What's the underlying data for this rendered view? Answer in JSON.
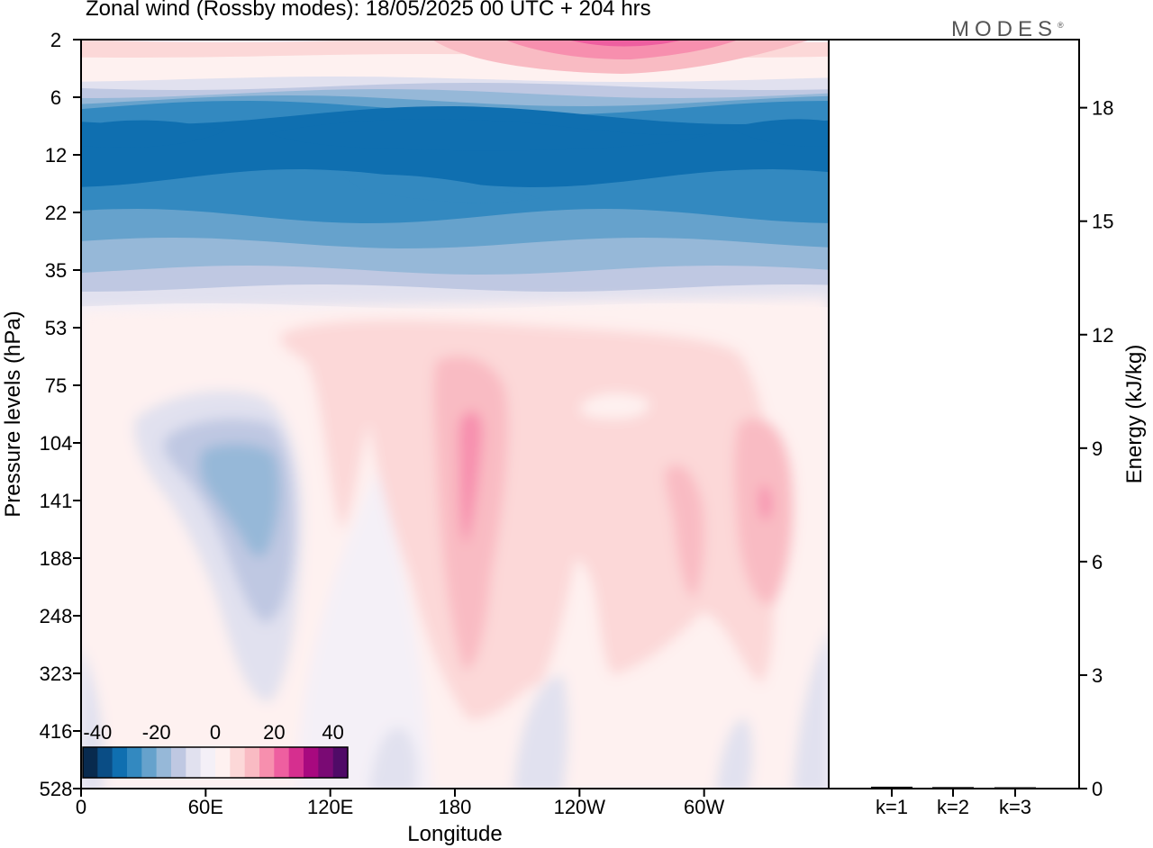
{
  "header": {
    "title": "Zonal wind (Rossby modes):  18/05/2025  00 UTC  + 204 hrs",
    "logo": "MODES",
    "logo_mark": "®"
  },
  "chart_data": [
    {
      "type": "heatmap",
      "title": "Zonal wind (Rossby modes):  18/05/2025  00 UTC  + 204 hrs",
      "xlabel": "Longitude",
      "ylabel": "Pressure levels (hPa)",
      "x_ticks": [
        "0",
        "60E",
        "120E",
        "180",
        "120W",
        "60W"
      ],
      "x_tick_degrees": [
        0,
        60,
        120,
        180,
        240,
        300
      ],
      "xlim": [
        0,
        360
      ],
      "y_ticks": [
        "2",
        "6",
        "12",
        "22",
        "35",
        "53",
        "75",
        "104",
        "141",
        "188",
        "248",
        "323",
        "416",
        "528"
      ],
      "y_scale": "level index (top = 2 hPa, bottom = 528 hPa)",
      "colorbar": {
        "labels": [
          "-40",
          "-20",
          "0",
          "20",
          "40"
        ],
        "label_values": [
          -40,
          -20,
          0,
          20,
          40
        ],
        "colors": [
          "#082a4e",
          "#0a4d85",
          "#0f6fb0",
          "#3389c0",
          "#66a2cc",
          "#96b8d8",
          "#bfc8e2",
          "#e1e1ef",
          "#f4f0f7",
          "#fef1f0",
          "#fcd8d8",
          "#f9bbc3",
          "#f78fae",
          "#ee5fa0",
          "#d62f8f",
          "#a8097f",
          "#7a0a74",
          "#500b67"
        ],
        "placement": "bottom-left inside plot"
      },
      "grid": false
    },
    {
      "type": "bar",
      "ylabel": "Energy (kJ/kg)",
      "categories": [
        "k=1",
        "k=2",
        "k=3"
      ],
      "values": [
        0.05,
        0.04,
        0.03
      ],
      "ylim": [
        0,
        19.8
      ],
      "y_ticks": [
        "0",
        "3",
        "6",
        "9",
        "12",
        "15",
        "18"
      ],
      "y_tick_values": [
        0,
        3,
        6,
        9,
        12,
        15,
        18
      ],
      "axis_side": "right"
    }
  ]
}
